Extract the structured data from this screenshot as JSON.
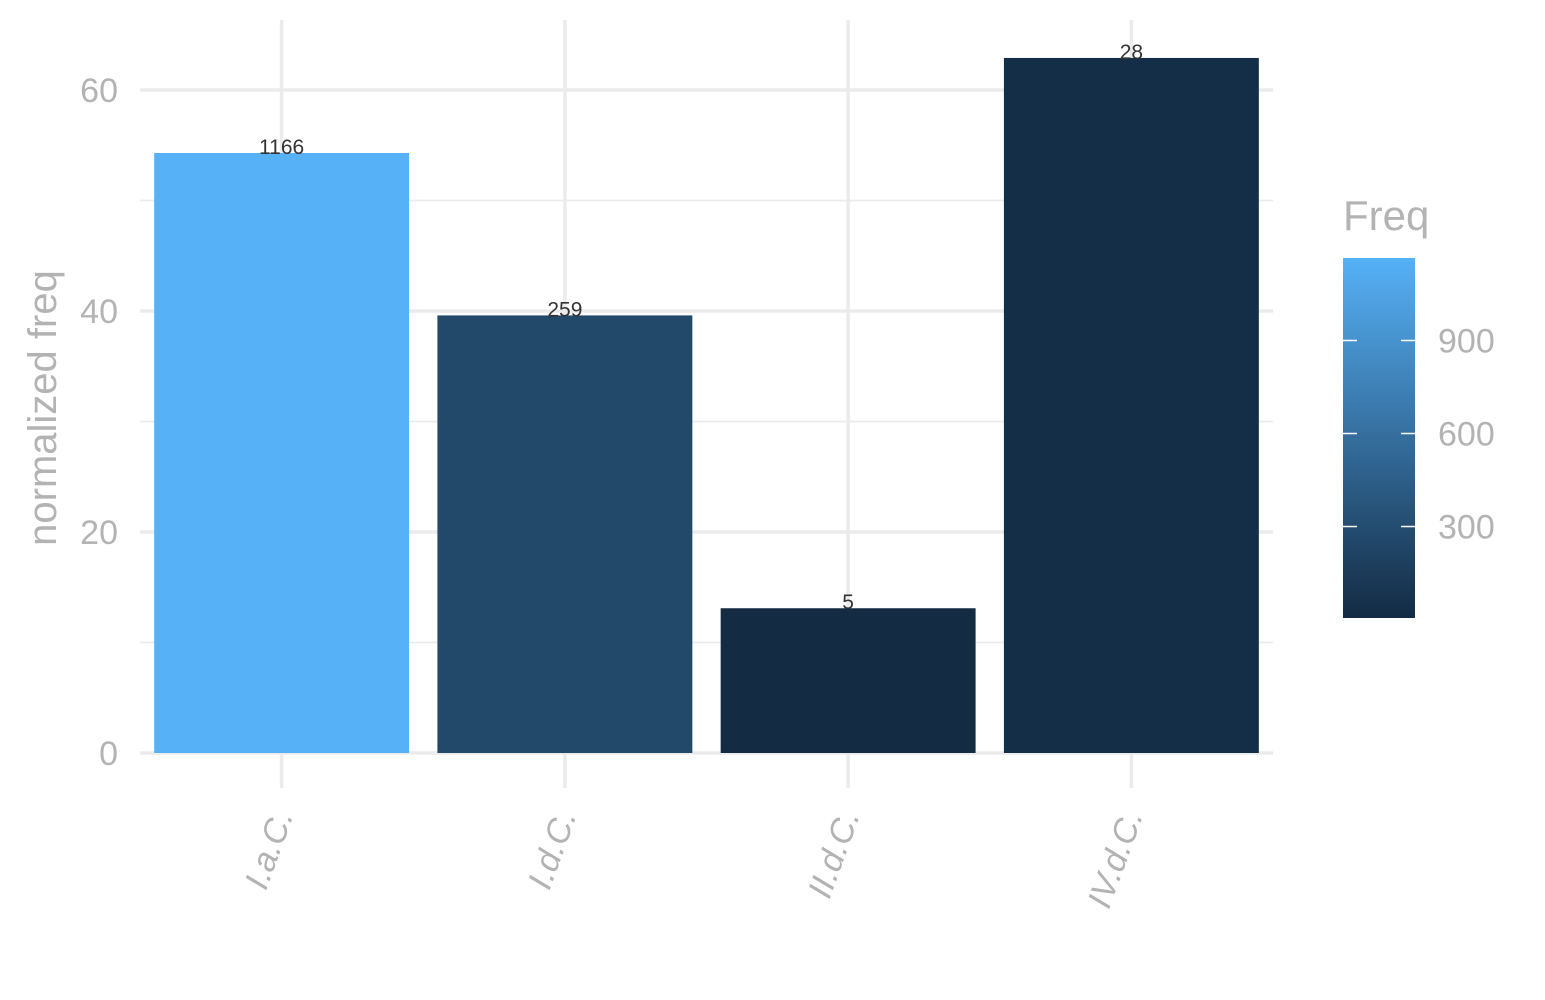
{
  "chart_data": {
    "type": "bar",
    "categories": [
      "I.a.C.",
      "I.d.C.",
      "II.d.C.",
      "IV.d.C."
    ],
    "values": [
      54.3,
      39.6,
      13.1,
      62.9
    ],
    "freq": [
      1166,
      259,
      5,
      28
    ],
    "data_labels": [
      "1166",
      "259",
      "5",
      "28"
    ],
    "xlabel": "",
    "ylabel": "normalized freq",
    "ylim": [
      0,
      66
    ],
    "y_ticks": [
      0,
      20,
      40,
      60
    ],
    "y_tick_labels": [
      "0",
      "20",
      "40",
      "60"
    ],
    "grid": true,
    "legend": {
      "title": "Freq",
      "placement": "right",
      "type": "colorbar",
      "range": [
        5,
        1166
      ],
      "ticks": [
        300,
        600,
        900
      ],
      "tick_labels": [
        "300",
        "600",
        "900"
      ],
      "color_low": "#132B43",
      "color_high": "#56B1F7"
    }
  }
}
